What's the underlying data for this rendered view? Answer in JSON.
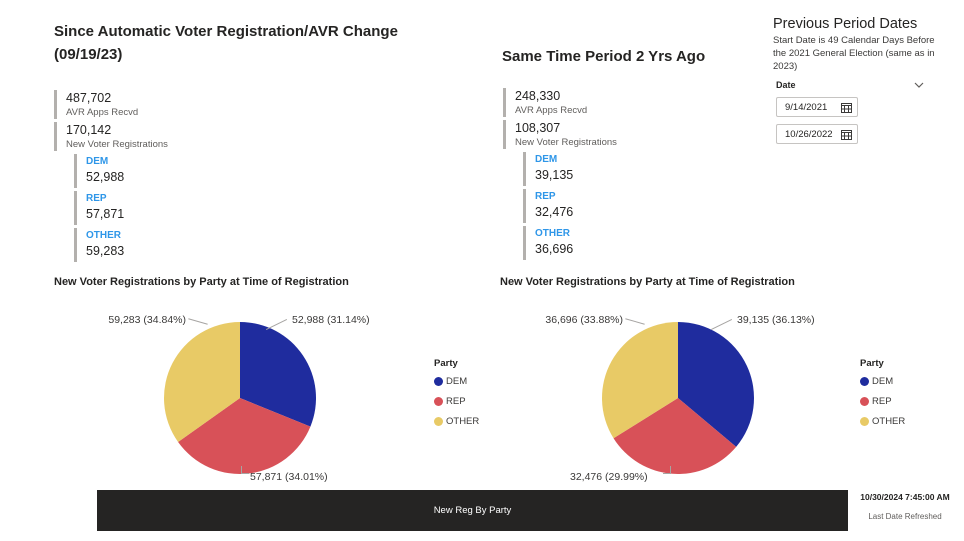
{
  "colors": {
    "dem": "#1F2C9E",
    "rep": "#D85158",
    "other": "#E8CA66",
    "party_label_blue": "#2E96E8",
    "footer_bg": "#252423"
  },
  "left_panel": {
    "title": "Since Automatic Voter Registration/AVR Change (09/19/23)",
    "stats": [
      {
        "value": "487,702",
        "label": "AVR Apps Recvd"
      },
      {
        "value": "170,142",
        "label": "New Voter Registrations"
      }
    ],
    "party_stats": [
      {
        "label": "DEM",
        "value": "52,988"
      },
      {
        "label": "REP",
        "value": "57,871"
      },
      {
        "label": "OTHER",
        "value": "59,283"
      }
    ]
  },
  "right_panel": {
    "title": "Same Time Period 2 Yrs Ago",
    "stats": [
      {
        "value": "248,330",
        "label": "AVR Apps Recvd"
      },
      {
        "value": "108,307",
        "label": "New Voter Registrations"
      }
    ],
    "party_stats": [
      {
        "label": "DEM",
        "value": "39,135"
      },
      {
        "label": "REP",
        "value": "32,476"
      },
      {
        "label": "OTHER",
        "value": "36,696"
      }
    ]
  },
  "filter_panel": {
    "title": "Previous Period Dates",
    "subtitle": "Start Date is 49 Calendar Days Before the 2021 General Election (same as in 2023)",
    "field_label": "Date",
    "date_values": [
      "9/14/2021",
      "10/26/2022"
    ]
  },
  "footer": {
    "tab_label": "New Reg By Party",
    "refresh_time": "10/30/2024 7:45:00 AM",
    "refresh_label": "Last Date Refreshed"
  },
  "chart_data": [
    {
      "type": "pie",
      "title": "New Voter Registrations by Party at Time of Registration",
      "legend_title": "Party",
      "legend_position": "right",
      "categories": [
        "DEM",
        "REP",
        "OTHER"
      ],
      "values": [
        52988,
        57871,
        59283
      ],
      "percentages": [
        31.14,
        34.01,
        34.84
      ],
      "labels": [
        "52,988 (31.14%)",
        "57,871 (34.01%)",
        "59,283 (34.84%)"
      ],
      "colors": [
        "#1F2C9E",
        "#D85158",
        "#E8CA66"
      ],
      "start_angle_deg": 0,
      "direction": "clockwise"
    },
    {
      "type": "pie",
      "title": "New Voter Registrations by Party at Time of Registration",
      "legend_title": "Party",
      "legend_position": "right",
      "categories": [
        "DEM",
        "REP",
        "OTHER"
      ],
      "values": [
        39135,
        32476,
        36696
      ],
      "percentages": [
        36.13,
        29.99,
        33.88
      ],
      "labels": [
        "39,135 (36.13%)",
        "32,476 (29.99%)",
        "36,696 (33.88%)"
      ],
      "colors": [
        "#1F2C9E",
        "#D85158",
        "#E8CA66"
      ],
      "start_angle_deg": 0,
      "direction": "clockwise"
    }
  ]
}
